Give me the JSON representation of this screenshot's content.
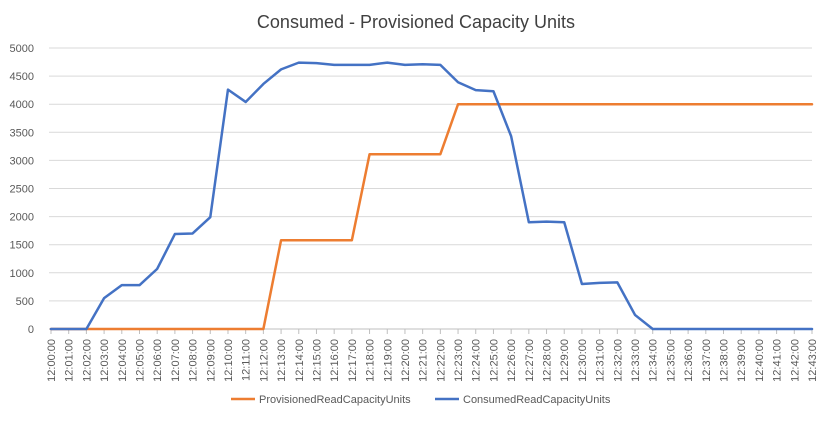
{
  "chart_data": {
    "type": "line",
    "title": "Consumed - Provisioned Capacity Units",
    "xlabel": "",
    "ylabel": "",
    "ylim": [
      0,
      5000
    ],
    "yticks": [
      0,
      500,
      1000,
      1500,
      2000,
      2500,
      3000,
      3500,
      4000,
      4500,
      5000
    ],
    "grid": true,
    "legend_position": "bottom",
    "categories": [
      "12:00:00",
      "12:01:00",
      "12:02:00",
      "12:03:00",
      "12:04:00",
      "12:05:00",
      "12:06:00",
      "12:07:00",
      "12:08:00",
      "12:09:00",
      "12:10:00",
      "12:11:00",
      "12:12:00",
      "12:13:00",
      "12:14:00",
      "12:15:00",
      "12:16:00",
      "12:17:00",
      "12:18:00",
      "12:19:00",
      "12:20:00",
      "12:21:00",
      "12:22:00",
      "12:23:00",
      "12:24:00",
      "12:25:00",
      "12:26:00",
      "12:27:00",
      "12:28:00",
      "12:29:00",
      "12:30:00",
      "12:31:00",
      "12:32:00",
      "12:33:00",
      "12:34:00",
      "12:35:00",
      "12:36:00",
      "12:37:00",
      "12:38:00",
      "12:39:00",
      "12:40:00",
      "12:41:00",
      "12:42:00",
      "12:43:00"
    ],
    "series": [
      {
        "name": "ProvisionedReadCapacityUnits",
        "color": "#ED7D31",
        "values": [
          0,
          0,
          0,
          0,
          0,
          0,
          0,
          0,
          0,
          0,
          0,
          0,
          0,
          1580,
          1580,
          1580,
          1580,
          1580,
          3110,
          3110,
          3110,
          3110,
          3110,
          4000,
          4000,
          4000,
          4000,
          4000,
          4000,
          4000,
          4000,
          4000,
          4000,
          4000,
          4000,
          4000,
          4000,
          4000,
          4000,
          4000,
          4000,
          4000,
          4000,
          4000
        ]
      },
      {
        "name": "ConsumedReadCapacityUnits",
        "color": "#4472C4",
        "values": [
          0,
          0,
          0,
          550,
          780,
          780,
          1070,
          1690,
          1700,
          1990,
          4260,
          4040,
          4360,
          4620,
          4740,
          4730,
          4700,
          4700,
          4700,
          4740,
          4700,
          4710,
          4700,
          4390,
          4250,
          4230,
          3430,
          1900,
          1910,
          1900,
          800,
          820,
          830,
          250,
          0,
          0,
          0,
          0,
          0,
          0,
          0,
          0,
          0,
          0
        ]
      }
    ]
  }
}
